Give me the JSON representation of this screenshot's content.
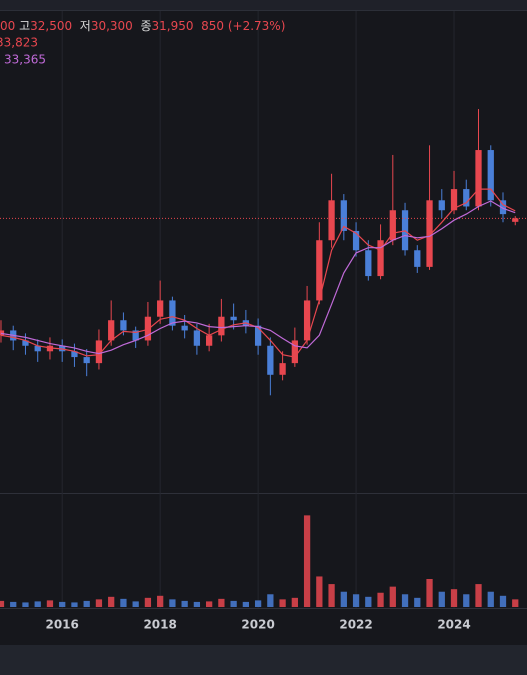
{
  "chart_data": {
    "type": "candlestick",
    "log_scale": true,
    "up_color": "#e8474f",
    "down_color": "#4a7fd8",
    "grid": true,
    "x": [
      2014.75,
      2015.0,
      2015.25,
      2015.5,
      2015.75,
      2016.0,
      2016.25,
      2016.5,
      2016.75,
      2017.0,
      2017.25,
      2017.5,
      2017.75,
      2018.0,
      2018.25,
      2018.5,
      2018.75,
      2019.0,
      2019.25,
      2019.5,
      2019.75,
      2020.0,
      2020.25,
      2020.5,
      2020.75,
      2021.0,
      2021.25,
      2021.5,
      2021.75,
      2022.0,
      2022.25,
      2022.5,
      2022.75,
      2023.0,
      2023.25,
      2023.5,
      2023.75,
      2024.0,
      2024.25,
      2024.5,
      2024.75,
      2025.0,
      2025.25
    ],
    "xlim": [
      2014.73,
      2025.49
    ],
    "xticks": [
      2016,
      2018,
      2020,
      2022,
      2024
    ],
    "ylim": [
      3900,
      156000
    ],
    "open": [
      13000,
      13500,
      12500,
      12000,
      11500,
      12000,
      11500,
      11000,
      10500,
      12500,
      14600,
      13500,
      12500,
      15000,
      17000,
      14000,
      13500,
      12000,
      13000,
      15000,
      14600,
      14000,
      12000,
      9600,
      10500,
      12500,
      17000,
      27000,
      36700,
      29000,
      25000,
      20500,
      27000,
      34000,
      25000,
      22000,
      36700,
      34000,
      40000,
      35000,
      54000,
      36700,
      31100
    ],
    "high": [
      14600,
      14000,
      13200,
      12600,
      12800,
      12600,
      12200,
      11700,
      13600,
      17000,
      15500,
      13900,
      16800,
      19800,
      17500,
      15200,
      14200,
      14200,
      17200,
      16600,
      15800,
      14800,
      12800,
      11500,
      13800,
      19000,
      31000,
      45000,
      38500,
      31000,
      27000,
      30500,
      52000,
      36000,
      26000,
      56000,
      40000,
      46000,
      43000,
      74000,
      56000,
      39000,
      32500
    ],
    "low": [
      12300,
      11600,
      11200,
      10600,
      10800,
      10600,
      10200,
      9500,
      10000,
      12000,
      13000,
      11800,
      12000,
      14200,
      13500,
      12700,
      11200,
      11500,
      12400,
      13600,
      13200,
      11200,
      8200,
      9200,
      10200,
      12100,
      16500,
      25500,
      27000,
      23800,
      19800,
      20000,
      26000,
      24000,
      21000,
      21500,
      32000,
      33000,
      34000,
      34000,
      35000,
      31000,
      30300
    ],
    "close": [
      13500,
      12500,
      12000,
      11500,
      12000,
      11500,
      11000,
      10500,
      12500,
      14600,
      13500,
      12500,
      15000,
      17000,
      14000,
      13500,
      12000,
      13000,
      15000,
      14600,
      14000,
      12000,
      9600,
      10500,
      12500,
      17000,
      27000,
      36700,
      29000,
      25000,
      20500,
      27000,
      34000,
      25000,
      22000,
      36700,
      34000,
      40000,
      35000,
      54000,
      36700,
      33000,
      31950
    ],
    "volume": [
      1200000,
      1000000,
      900000,
      1100000,
      1300000,
      1000000,
      900000,
      1200000,
      1500000,
      2000000,
      1600000,
      1100000,
      1800000,
      2200000,
      1500000,
      1200000,
      1000000,
      1100000,
      1600000,
      1200000,
      1000000,
      1300000,
      2500000,
      1500000,
      1800000,
      18000000,
      6000000,
      4500000,
      3000000,
      2500000,
      2000000,
      2800000,
      4000000,
      2500000,
      1800000,
      5500000,
      3000000,
      3500000,
      2500000,
      4500000,
      3000000,
      2200000,
      1500000
    ],
    "volume_ylim": [
      0,
      22000000
    ],
    "ma_lines": [
      {
        "label": "33,823",
        "color": "#e8474f",
        "values": [
          13000,
          12800,
          12500,
          12000,
          11800,
          11700,
          11500,
          11100,
          11200,
          12500,
          13400,
          13300,
          13600,
          14700,
          15000,
          14600,
          13700,
          13000,
          13600,
          14100,
          14300,
          13800,
          12500,
          11200,
          11000,
          12500,
          17000,
          25000,
          30000,
          28500,
          26000,
          25000,
          28500,
          29000,
          27000,
          28000,
          31000,
          34500,
          36000,
          40000,
          40000,
          35500,
          33823
        ]
      },
      {
        "label": "33,365",
        "color": "#c06ad8",
        "values": [
          13200,
          13000,
          12800,
          12500,
          12200,
          12000,
          11800,
          11500,
          11300,
          11600,
          12100,
          12500,
          13000,
          13700,
          14300,
          14500,
          14300,
          13900,
          13800,
          13900,
          14000,
          13900,
          13500,
          12700,
          12000,
          11800,
          13000,
          16500,
          21000,
          24500,
          25500,
          25500,
          27000,
          28000,
          27500,
          27800,
          29500,
          31500,
          33000,
          35000,
          36500,
          34500,
          33365
        ]
      }
    ],
    "ohlc_legend": [
      {
        "text": "00",
        "color": "#e8474f"
      },
      {
        "text": " 고",
        "color": "#d8d8d8"
      },
      {
        "text": "32,500",
        "color": "#e8474f"
      },
      {
        "text": "  저",
        "color": "#d8d8d8"
      },
      {
        "text": "30,300",
        "color": "#e8474f"
      },
      {
        "text": "  종",
        "color": "#d8d8d8"
      },
      {
        "text": "31,950",
        "color": "#e8474f"
      },
      {
        "text": "  850 (+2.73%)",
        "color": "#e8474f"
      }
    ]
  }
}
